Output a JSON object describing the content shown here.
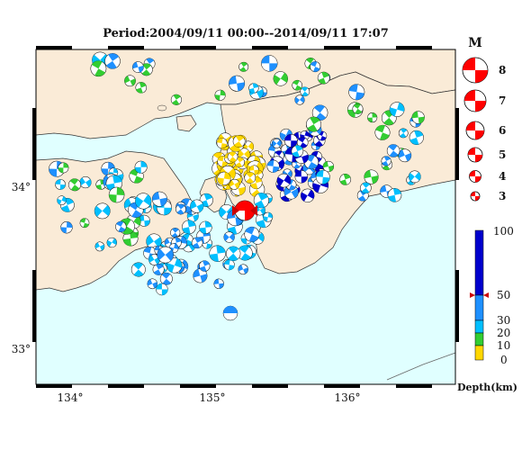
{
  "title": "Period:2004/09/11 00:00--2014/09/11 17:07",
  "map": {
    "lon_ticks": [
      {
        "value": 134,
        "label": "134°"
      },
      {
        "value": 135,
        "label": "135°"
      },
      {
        "value": 136,
        "label": "136°"
      }
    ],
    "lat_ticks": [
      {
        "value": 34,
        "label": "34°"
      },
      {
        "value": 33,
        "label": "33°"
      }
    ],
    "extent": {
      "lon_min": 133.8,
      "lon_max": 136.75,
      "lat_min": 32.78,
      "lat_max": 34.78
    },
    "colors": {
      "sea": "#e0ffff",
      "land": "#faebd7",
      "coast": "#333333",
      "frame_dark": "#000000"
    }
  },
  "magnitude_legend": {
    "header": "M",
    "items": [
      {
        "mag": 8,
        "label": "8"
      },
      {
        "mag": 7,
        "label": "7"
      },
      {
        "mag": 6,
        "label": "6"
      },
      {
        "mag": 5,
        "label": "5"
      },
      {
        "mag": 4,
        "label": "4"
      },
      {
        "mag": 3,
        "label": "3"
      }
    ],
    "color": "#ff0000"
  },
  "depth_legend": {
    "ticks": [
      "100",
      "50",
      "30",
      "20",
      "10",
      "0"
    ],
    "label": "Depth(km)",
    "scale": [
      {
        "from": 0,
        "to": 10,
        "color": "#ffd700"
      },
      {
        "from": 10,
        "to": 20,
        "color": "#32cd32"
      },
      {
        "from": 20,
        "to": 30,
        "color": "#00bfff"
      },
      {
        "from": 30,
        "to": 50,
        "color": "#1e90ff"
      },
      {
        "from": 50,
        "to": 100,
        "color": "#0000cd"
      }
    ],
    "marker_depth": 50
  },
  "events": [
    {
      "lon": 135.21,
      "lat": 33.86,
      "mag": 5.2,
      "depth": 50,
      "color": "#ff0000",
      "fault": "reverse"
    }
  ]
}
